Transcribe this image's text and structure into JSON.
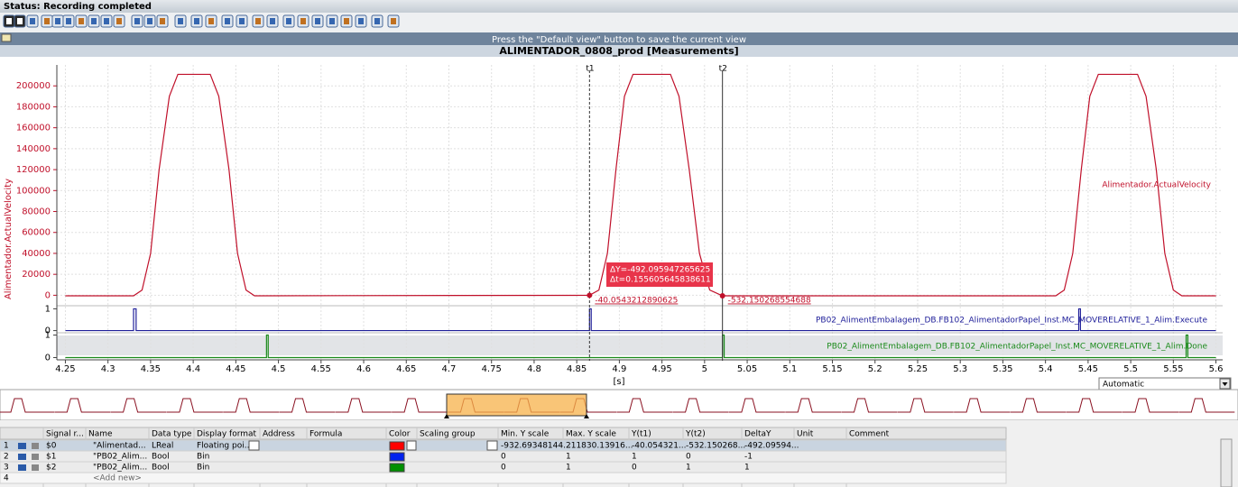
{
  "status": "Status: Recording completed",
  "hint": "Press the \"Default view\" button to save the current view",
  "view_mode": "Automatic",
  "chart_data": [
    {
      "type": "line",
      "title": "ALIMENTADOR_0808_prod [Measurements]",
      "y_label": "Alimentador.ActualVelocity",
      "x_label": "[s]",
      "xlim": [
        4.24,
        5.61
      ],
      "ylim": [
        -10000,
        220000
      ],
      "grid": true,
      "xticks": [
        4.25,
        4.3,
        4.35,
        4.4,
        4.45,
        4.5,
        4.55,
        4.6,
        4.65,
        4.7,
        4.75,
        4.8,
        4.85,
        4.9,
        4.95,
        5,
        5.05,
        5.1,
        5.15,
        5.2,
        5.25,
        5.3,
        5.35,
        5.4,
        5.45,
        5.5,
        5.55,
        5.6
      ],
      "yticks": [
        0,
        20000,
        40000,
        60000,
        80000,
        100000,
        120000,
        140000,
        160000,
        180000,
        200000
      ],
      "x": [
        4.25,
        4.33,
        4.34,
        4.35,
        4.36,
        4.372,
        4.382,
        4.42,
        4.43,
        4.442,
        4.452,
        4.462,
        4.472,
        4.865,
        4.876,
        4.886,
        4.896,
        4.906,
        4.916,
        4.96,
        4.97,
        4.982,
        4.994,
        5.006,
        5.021,
        5.412,
        5.422,
        5.432,
        5.442,
        5.452,
        5.462,
        5.508,
        5.518,
        5.53,
        5.54,
        5.55,
        5.56,
        5.6
      ],
      "series": [
        {
          "name": "Alimentador.ActualVelocity",
          "color": "#c0102a",
          "values": [
            -500,
            -500,
            5000,
            40000,
            120000,
            190000,
            211000,
            211000,
            190000,
            120000,
            40000,
            5000,
            -500,
            -40,
            5000,
            40000,
            120000,
            190000,
            211000,
            211000,
            190000,
            120000,
            40000,
            5000,
            -532,
            -500,
            5000,
            40000,
            120000,
            190000,
            211000,
            211000,
            190000,
            120000,
            40000,
            5000,
            -500,
            -500
          ]
        }
      ],
      "cursors": [
        {
          "label": "t1",
          "x": 4.865,
          "y": -40.0543212890625
        },
        {
          "label": "t2",
          "x": 5.021,
          "y": -532.150268554688
        }
      ],
      "delta": [
        "ΔY=-492.095947265625",
        "Δt=0.155605645838611"
      ]
    },
    {
      "type": "line",
      "xlim": [
        4.24,
        5.61
      ],
      "ylim": [
        -0.1,
        1.1
      ],
      "yticks": [
        0,
        1
      ],
      "x": [
        4.25,
        4.33,
        4.33,
        4.333,
        4.333,
        4.865,
        4.865,
        4.867,
        4.867,
        5.439,
        5.439,
        5.441,
        5.441,
        5.6
      ],
      "series": [
        {
          "name": "PB02_AlimentEmbalagem_DB.FB102_AlimentadorPapel_Inst.MC_MOVERELATIVE_1_Alim.Execute",
          "color": "#20209a",
          "values": [
            0,
            0,
            1,
            1,
            0,
            0,
            1,
            1,
            0,
            0,
            1,
            1,
            0,
            0
          ]
        }
      ]
    },
    {
      "type": "line",
      "xlim": [
        4.24,
        5.61
      ],
      "ylim": [
        -0.1,
        1.1
      ],
      "yticks": [
        0,
        1
      ],
      "x": [
        4.25,
        4.486,
        4.486,
        4.488,
        4.488,
        5.021,
        5.021,
        5.023,
        5.023,
        5.565,
        5.565,
        5.567,
        5.567,
        5.6
      ],
      "series": [
        {
          "name": "PB02_AlimentEmbalagem_DB.FB102_AlimentadorPapel_Inst.MC_MOVERELATIVE_1_Alim.Done",
          "color": "#1a8a1a",
          "values": [
            0,
            0,
            1,
            1,
            0,
            0,
            1,
            1,
            0,
            0,
            1,
            1,
            0,
            0
          ]
        }
      ]
    }
  ],
  "table": {
    "columns": [
      "Signal r...",
      "Name",
      "Data type",
      "Display format",
      "Address",
      "Formula",
      "Color",
      "Scaling group",
      "Min. Y scale",
      "Max. Y scale",
      "Y(t1)",
      "Y(t2)",
      "DeltaY",
      "Unit",
      "Comment"
    ],
    "rows": [
      {
        "index": "1",
        "signal": "$0",
        "name": "\"Alimentad...",
        "data_type": "LReal",
        "display_format": "Floating poi...",
        "color": "#ff0000",
        "min_y": "-932.69348144...",
        "max_y": "211830.13916...",
        "y_t1": "-40.054321...",
        "y_t2": "-532.150268...",
        "delta_y": "-492.09594..."
      },
      {
        "index": "2",
        "signal": "$1",
        "name": "\"PB02_Alim...",
        "data_type": "Bool",
        "display_format": "Bin",
        "color": "#0022ee",
        "min_y": "0",
        "max_y": "1",
        "y_t1": "1",
        "y_t2": "0",
        "delta_y": "-1"
      },
      {
        "index": "3",
        "signal": "$2",
        "name": "\"PB02_Alim...",
        "data_type": "Bool",
        "display_format": "Bin",
        "color": "#009000",
        "min_y": "0",
        "max_y": "1",
        "y_t1": "0",
        "y_t2": "1",
        "delta_y": "1"
      },
      {
        "index": "4",
        "name": "<Add new>"
      }
    ]
  }
}
